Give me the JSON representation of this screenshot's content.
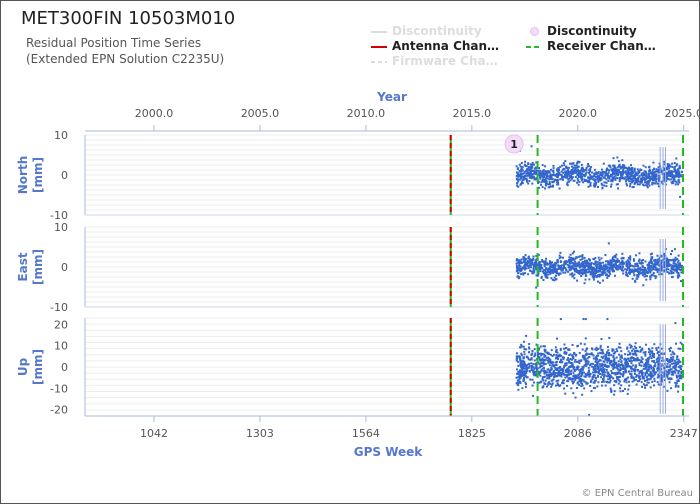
{
  "header": {
    "title": "MET300FIN 10503M010",
    "subtitle_line1": "Residual Position Time Series",
    "subtitle_line2": "(Extended EPN Solution C2235U)"
  },
  "legend": [
    {
      "label": "Discontinuity",
      "style": "line-faded",
      "color": "#dddddd"
    },
    {
      "label": "Antenna Chan…",
      "style": "line",
      "color": "#d40000"
    },
    {
      "label": "Firmware Cha…",
      "style": "dash-faded",
      "color": "#dddddd"
    },
    {
      "label": "Discontinuity",
      "style": "dot",
      "color": "#d98fe8"
    },
    {
      "label": "Receiver Chan…",
      "style": "dash",
      "color": "#22bb22"
    }
  ],
  "credit": "© EPN Central Bureau",
  "chart_data": {
    "type": "scatter",
    "top_axis": {
      "label": "Year",
      "ticks": [
        "2000.0",
        "2005.0",
        "2010.0",
        "2015.0",
        "2020.0",
        "2025.0"
      ],
      "tick_values": [
        2000,
        2005,
        2010,
        2015,
        2020,
        2025
      ]
    },
    "bottom_axis": {
      "label": "GPS Week",
      "ticks": [
        "1042",
        "1303",
        "1564",
        "1825",
        "2086",
        "2347"
      ],
      "tick_values": [
        1042,
        1303,
        1564,
        1825,
        2086,
        2347
      ]
    },
    "x_range_week": [
      872,
      2360
    ],
    "data_span_week": [
      1935,
      2343
    ],
    "antenna_change_week": 1773,
    "receiver_change_weeks": [
      1987,
      2350
    ],
    "discontinuity_marker": {
      "label": "1",
      "week": 1929
    },
    "panels": [
      {
        "name": "North",
        "unit": "[mm]",
        "ylim": [
          -10,
          10
        ],
        "ticks": [
          "10",
          "0",
          "-10"
        ],
        "tick_values": [
          10,
          0,
          -10
        ]
      },
      {
        "name": "East",
        "unit": "[mm]",
        "ylim": [
          -10,
          10
        ],
        "ticks": [
          "10",
          "0",
          "-10"
        ],
        "tick_values": [
          10,
          0,
          -10
        ]
      },
      {
        "name": "Up",
        "unit": "[mm]",
        "ylim": [
          -23,
          23
        ],
        "ticks": [
          "20",
          "10",
          "0",
          "-10",
          "-20"
        ],
        "tick_values": [
          20,
          10,
          0,
          -10,
          -20
        ]
      }
    ],
    "point_color": "#3366cc",
    "grid": true
  }
}
